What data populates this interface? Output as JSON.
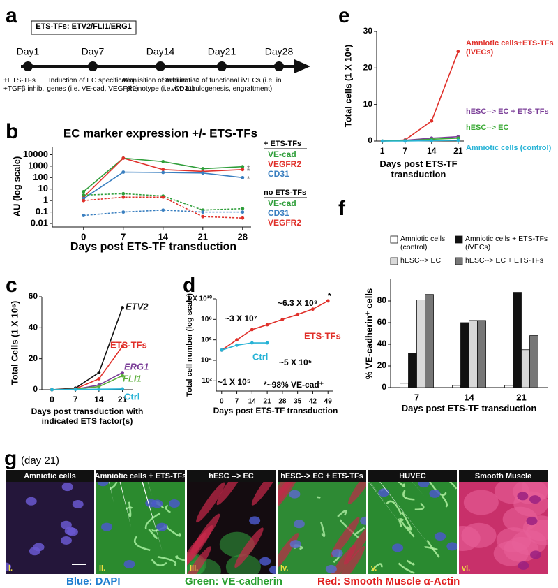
{
  "panel_a": {
    "label": "a",
    "box": "ETS-TFs: ETV2/FLI1/ERG1",
    "days": [
      {
        "day": "Day1",
        "text": "+ETS-TFs +TGFβ inhib."
      },
      {
        "day": "Day7",
        "text": "Induction of EC specification genes (i.e. VE-cad, VEGFR2)"
      },
      {
        "day": "Day14",
        "text": "Acquisition of mature EC phenotype (i.e. CD31)"
      },
      {
        "day": "Day21",
        "text": "Stabilization of functional iVECs (i.e. in vivo tubulogenesis, engraftment)"
      },
      {
        "day": "Day28"
      }
    ]
  },
  "chart_data": [
    {
      "panel": "b",
      "type": "line",
      "log": true,
      "title": "EC marker expression +/- ETS-TFs",
      "x_label": "Days post ETS-TF transduction",
      "y_label": "AU (log scale)",
      "annotation": "*",
      "x": [
        0,
        7,
        14,
        21,
        28
      ],
      "xlim": [
        -5.5,
        29.5
      ],
      "xticks": [
        0,
        7,
        14,
        21,
        28
      ],
      "ylim": [
        0.005,
        50000
      ],
      "yticks": [
        10000,
        1000,
        100,
        10,
        1,
        0.1,
        0.01
      ],
      "series": [
        {
          "group": "+ ETS-TFs",
          "name": "VE-cad",
          "color": "#2f9e3a",
          "values": [
            6,
            5000,
            2500,
            600,
            900
          ]
        },
        {
          "group": "+ ETS-TFs",
          "name": "VEGFR2",
          "color": "#e0302a",
          "values": [
            2,
            5000,
            500,
            350,
            500
          ]
        },
        {
          "group": "+ ETS-TFs",
          "name": "CD31",
          "color": "#3a7fc0",
          "values": [
            1.5,
            300,
            280,
            250,
            100
          ]
        },
        {
          "group": "no ETS-TFs",
          "name": "VE-cad",
          "color": "#2f9e3a",
          "dash": true,
          "values": [
            3,
            4,
            2.5,
            0.15,
            0.2
          ]
        },
        {
          "group": "no ETS-TFs",
          "name": "CD31",
          "color": "#3a7fc0",
          "dash": true,
          "values": [
            0.05,
            0.1,
            0.15,
            0.1,
            0.1
          ]
        },
        {
          "group": "no ETS-TFs",
          "name": "VEGFR2",
          "color": "#e0302a",
          "dash": true,
          "values": [
            1,
            2,
            2,
            0.04,
            0.03
          ]
        }
      ]
    },
    {
      "panel": "c",
      "type": "line",
      "x_label": "Days post transduction with indicated ETS factor(s)",
      "y_label": "Total Cells (1 X 10⁶)",
      "x": [
        0,
        7,
        14,
        21
      ],
      "xlim": [
        -3,
        24
      ],
      "xticks": [
        0,
        7,
        14,
        21
      ],
      "ylim": [
        0,
        60
      ],
      "yticks": [
        0,
        20,
        40,
        60
      ],
      "series": [
        {
          "name": "ETV2",
          "color": "#111111",
          "values": [
            0,
            1,
            11,
            53
          ]
        },
        {
          "name": "ETS-TFs",
          "color": "#e0302a",
          "values": [
            0,
            0.5,
            7,
            28
          ]
        },
        {
          "name": "ERG1",
          "color": "#7b3f98",
          "values": [
            0,
            0.3,
            3,
            11
          ]
        },
        {
          "name": "FLI1",
          "color": "#5aae3a",
          "values": [
            0,
            0.3,
            2,
            9
          ]
        },
        {
          "name": "Ctrl",
          "color": "#27b3d6",
          "values": [
            0,
            0.2,
            0.3,
            0.5
          ]
        }
      ]
    },
    {
      "panel": "d",
      "type": "line",
      "log": true,
      "x_label": "Days post ETS-TF transduction",
      "y_label": "Total cell number (log scale)",
      "xlim": [
        -2.5,
        51.5
      ],
      "xticks": [
        0,
        7,
        14,
        21,
        28,
        35,
        42,
        49
      ],
      "ylim": [
        10,
        10000000000
      ],
      "yticks": [
        {
          "value": 10000000000,
          "label": "1 X 10¹⁰"
        },
        {
          "value": 100000000,
          "label": "10⁸"
        },
        {
          "value": 1000000,
          "label": "10⁶"
        },
        {
          "value": 10000,
          "label": "10⁴"
        },
        {
          "value": 100,
          "label": "10²"
        }
      ],
      "annotations": [
        "~3 X 10⁷",
        "~6.3 X 10⁹",
        "*",
        "~5 X 10⁵",
        "~1 X 10⁵",
        "*~98% VE-cad⁺"
      ],
      "series": [
        {
          "name": "ETS-TFs",
          "color": "#e0302a",
          "x": [
            0,
            7,
            14,
            21,
            28,
            35,
            42,
            49
          ],
          "values": [
            100000,
            1000000,
            10000000,
            30000000,
            100000000,
            300000000,
            1000000000,
            6300000000
          ]
        },
        {
          "name": "Ctrl",
          "color": "#27b3d6",
          "x": [
            0,
            7,
            14,
            21
          ],
          "values": [
            100000,
            300000,
            500000,
            500000
          ]
        }
      ]
    },
    {
      "panel": "e",
      "type": "line",
      "x_label": "Days post ETS-TF transduction",
      "y_label": "Total cells (1 X 10⁶)",
      "x": [
        1,
        7,
        14,
        21
      ],
      "xlim": [
        -0.5,
        22.5
      ],
      "xticks": [
        1,
        7,
        14,
        21
      ],
      "ylim": [
        0,
        30
      ],
      "yticks": [
        0,
        10,
        20,
        30
      ],
      "series": [
        {
          "name": "Amniotic cells+ETS-TFs (iVECs)",
          "color": "#e0302a",
          "values": [
            0,
            0.3,
            5.5,
            24.5
          ]
        },
        {
          "name": "hESC--> EC + ETS-TFs",
          "color": "#7b3f98",
          "values": [
            0,
            0.2,
            0.8,
            1.2
          ]
        },
        {
          "name": "hESC--> EC",
          "color": "#3aaa35",
          "values": [
            0,
            0.1,
            0.5,
            0.8
          ]
        },
        {
          "name": "Amniotic cells (control)",
          "color": "#27b3d6",
          "values": [
            0,
            0,
            0.1,
            0.2
          ]
        }
      ]
    },
    {
      "panel": "f",
      "type": "bar",
      "x_label": "Days post ETS-TF transduction",
      "y_label": "% VE-cadherin⁺ cells",
      "categories": [
        "7",
        "14",
        "21"
      ],
      "ylim": [
        0,
        100
      ],
      "yticks": [
        0,
        20,
        40,
        60,
        80
      ],
      "series": [
        {
          "name": "Amniotic cells (control)",
          "color": "#ffffff",
          "values": [
            4,
            2,
            2
          ]
        },
        {
          "name": "Amniotic cells + ETS-TFs (iVECs)",
          "color": "#111111",
          "values": [
            32,
            60,
            88
          ]
        },
        {
          "name": "hESC--> EC",
          "color": "#d9d9d9",
          "values": [
            81,
            62,
            35
          ]
        },
        {
          "name": "hESC--> EC + ETS-TFs",
          "color": "#777777",
          "values": [
            86,
            62,
            48
          ]
        }
      ]
    }
  ],
  "panel_g": {
    "label": "g",
    "subtitle": "(day 21)",
    "images": [
      {
        "title": "Amniotic cells",
        "tag": "i."
      },
      {
        "title": "Amniotic cells + ETS-TFs",
        "tag": "ii."
      },
      {
        "title": "hESC --> EC",
        "tag": "iii."
      },
      {
        "title": "hESC--> EC + ETS-TFs",
        "tag": "iv."
      },
      {
        "title": "HUVEC",
        "tag": "v."
      },
      {
        "title": "Smooth Muscle",
        "tag": "vi."
      }
    ],
    "legend": [
      {
        "text": "Blue: DAPI",
        "color": "#1f7fd0"
      },
      {
        "text": "Green: VE-cadherin",
        "color": "#2aa030"
      },
      {
        "text": "Red: Smooth Muscle α-Actin",
        "color": "#e02020"
      }
    ]
  }
}
